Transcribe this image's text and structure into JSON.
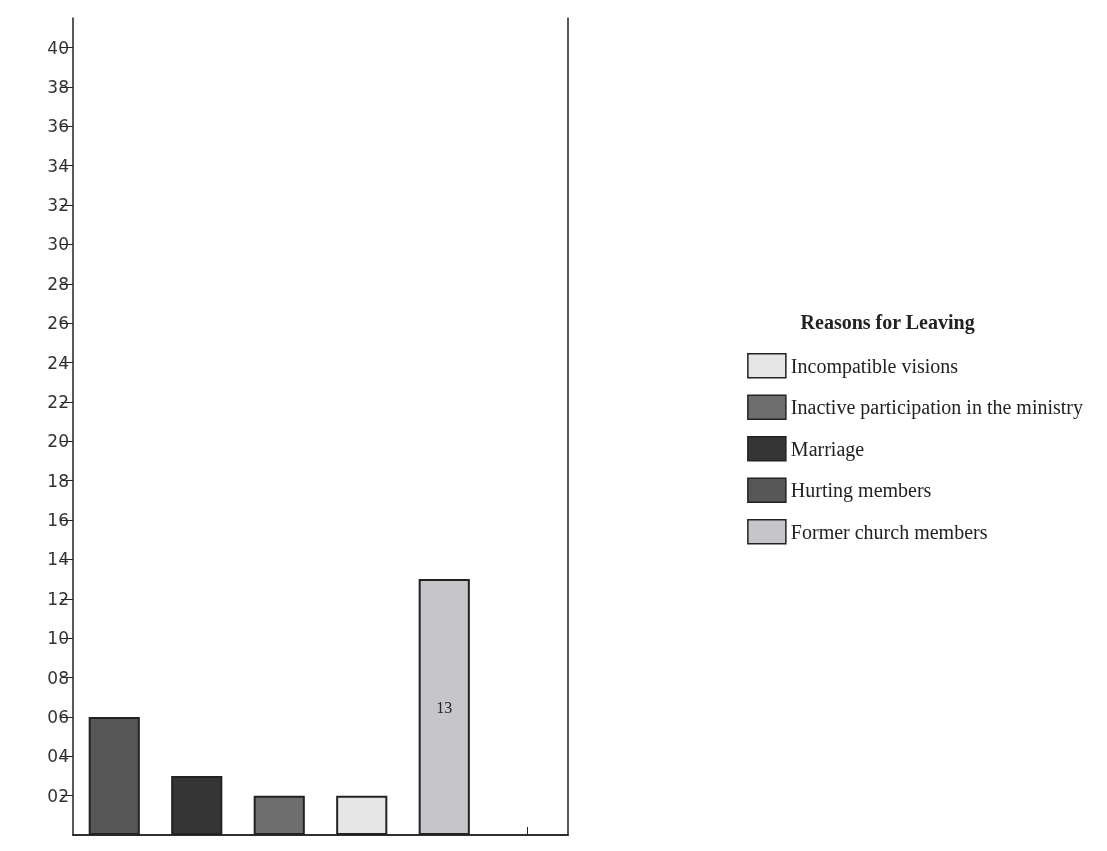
{
  "chart_data": {
    "type": "bar",
    "legend_title": "Reasons for Leaving",
    "categories": [
      null,
      null,
      null,
      null,
      null,
      null
    ],
    "series": [
      {
        "name": "Incompatible visions",
        "color": "#e6e6e6",
        "values": [
          null,
          null,
          null,
          2,
          null,
          null
        ]
      },
      {
        "name": "Inactive participation in the ministry",
        "color": "#6e6e6e",
        "values": [
          null,
          null,
          2,
          null,
          null,
          null
        ]
      },
      {
        "name": "Marriage",
        "color": "#353535",
        "values": [
          null,
          3,
          null,
          null,
          null,
          null
        ]
      },
      {
        "name": "Hurting members",
        "color": "#575757",
        "values": [
          6,
          null,
          null,
          null,
          null,
          null
        ]
      },
      {
        "name": "Former church members",
        "color": "#c6c6ca",
        "values": [
          null,
          null,
          null,
          null,
          13,
          null
        ],
        "value_labels": [
          null,
          null,
          null,
          null,
          "13",
          null
        ]
      }
    ],
    "ylim": [
      0,
      41.5
    ],
    "yticks": [
      {
        "value": 2,
        "label": "02"
      },
      {
        "value": 4,
        "label": "04"
      },
      {
        "value": 6,
        "label": "06"
      },
      {
        "value": 8,
        "label": "08"
      },
      10,
      12,
      14,
      16,
      18,
      20,
      22,
      24,
      26,
      28,
      30,
      32,
      34,
      36,
      38,
      40
    ],
    "grid": false,
    "legend": "right"
  }
}
